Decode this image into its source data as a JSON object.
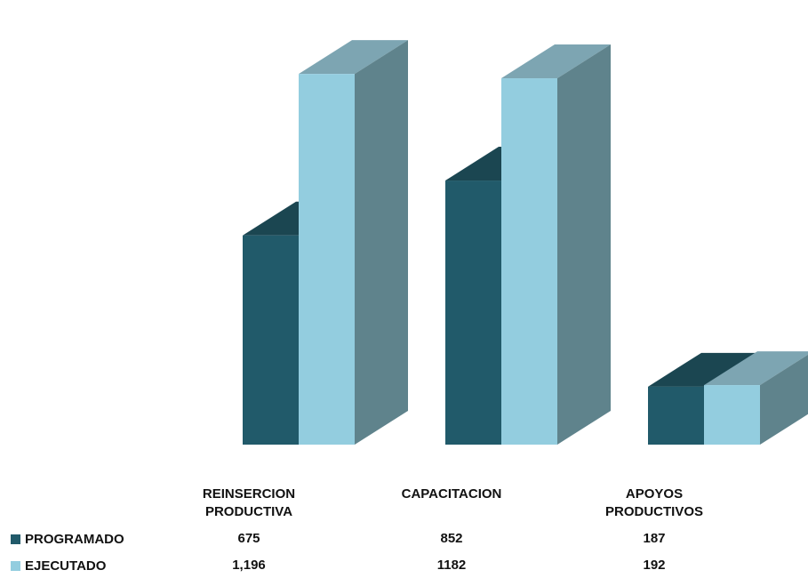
{
  "chart_data": {
    "type": "bar",
    "categories": [
      "REINSERCION\nPRODUCTIVA",
      "CAPACITACION",
      "APOYOS\nPRODUCTIVOS"
    ],
    "series": [
      {
        "name": "PROGRAMADO",
        "values": [
          675,
          852,
          187
        ],
        "labels": [
          "675",
          "852",
          "187"
        ],
        "color": "#215a6a"
      },
      {
        "name": "EJECUTADO",
        "values": [
          1196,
          1182,
          192
        ],
        "labels": [
          "1,196",
          "1182",
          "192"
        ],
        "color": "#93cddf"
      }
    ],
    "title": "",
    "xlabel": "",
    "ylabel": "",
    "ylim": [
      0,
      1300
    ],
    "grid": false,
    "legend": "data-table-left",
    "colors": {
      "programado_front": "#215a6a",
      "programado_top": "#1b4651",
      "ejecutado_front": "#93cddf",
      "ejecutado_top": "#7da5b2",
      "side": "#5f838c"
    }
  }
}
